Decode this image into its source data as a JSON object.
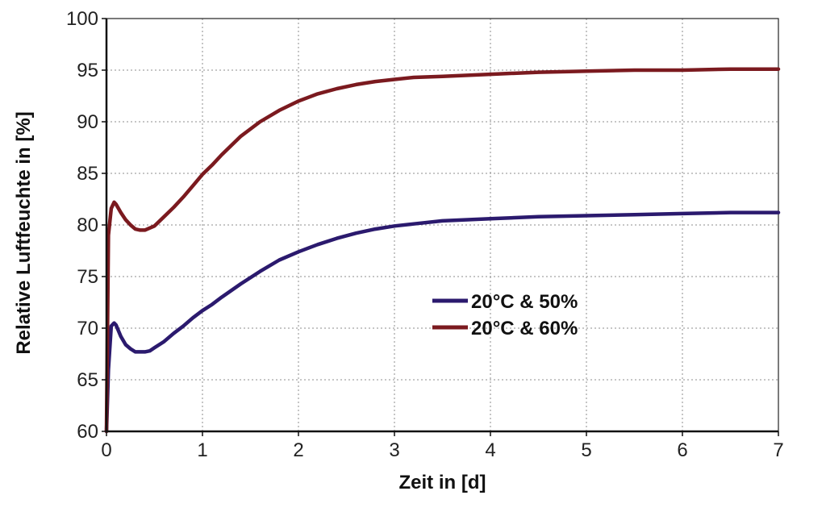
{
  "chart_data": {
    "type": "line",
    "title": "",
    "xlabel": "Zeit in [d]",
    "ylabel": "Relative Luftfeuchte in [%]",
    "xlim": [
      0,
      7
    ],
    "ylim": [
      60,
      100
    ],
    "xticks": [
      0,
      1,
      2,
      3,
      4,
      5,
      6,
      7
    ],
    "yticks": [
      60,
      65,
      70,
      75,
      80,
      85,
      90,
      95,
      100
    ],
    "grid": true,
    "legend_position": "center-right",
    "series": [
      {
        "name": "20°C & 50%",
        "color": "#2b1a6e",
        "x": [
          0,
          0.02,
          0.05,
          0.08,
          0.1,
          0.15,
          0.2,
          0.25,
          0.3,
          0.35,
          0.4,
          0.45,
          0.5,
          0.6,
          0.7,
          0.8,
          0.9,
          1.0,
          1.1,
          1.2,
          1.4,
          1.6,
          1.8,
          2.0,
          2.2,
          2.4,
          2.6,
          2.8,
          3.0,
          3.2,
          3.5,
          4.0,
          4.5,
          5.0,
          5.5,
          6.0,
          6.5,
          7.0
        ],
        "y": [
          60,
          66,
          70.2,
          70.5,
          70.3,
          69.2,
          68.4,
          68.0,
          67.7,
          67.7,
          67.7,
          67.8,
          68.1,
          68.7,
          69.5,
          70.2,
          71.0,
          71.7,
          72.3,
          73.0,
          74.3,
          75.5,
          76.6,
          77.4,
          78.1,
          78.7,
          79.2,
          79.6,
          79.9,
          80.1,
          80.4,
          80.6,
          80.8,
          80.9,
          81.0,
          81.1,
          81.2,
          81.2
        ]
      },
      {
        "name": "20°C & 60%",
        "color": "#7b1a1f",
        "x": [
          0,
          0.02,
          0.05,
          0.08,
          0.1,
          0.15,
          0.2,
          0.25,
          0.3,
          0.35,
          0.4,
          0.45,
          0.5,
          0.6,
          0.7,
          0.8,
          0.9,
          1.0,
          1.1,
          1.2,
          1.4,
          1.6,
          1.8,
          2.0,
          2.2,
          2.4,
          2.6,
          2.8,
          3.0,
          3.2,
          3.5,
          4.0,
          4.5,
          5.0,
          5.5,
          6.0,
          6.5,
          7.0
        ],
        "y": [
          60,
          79,
          81.6,
          82.2,
          82.0,
          81.2,
          80.5,
          80.0,
          79.6,
          79.5,
          79.5,
          79.7,
          79.9,
          80.8,
          81.7,
          82.7,
          83.8,
          84.9,
          85.8,
          86.8,
          88.6,
          90.0,
          91.1,
          92.0,
          92.7,
          93.2,
          93.6,
          93.9,
          94.1,
          94.3,
          94.4,
          94.6,
          94.8,
          94.9,
          95.0,
          95.0,
          95.1,
          95.1
        ]
      }
    ]
  }
}
